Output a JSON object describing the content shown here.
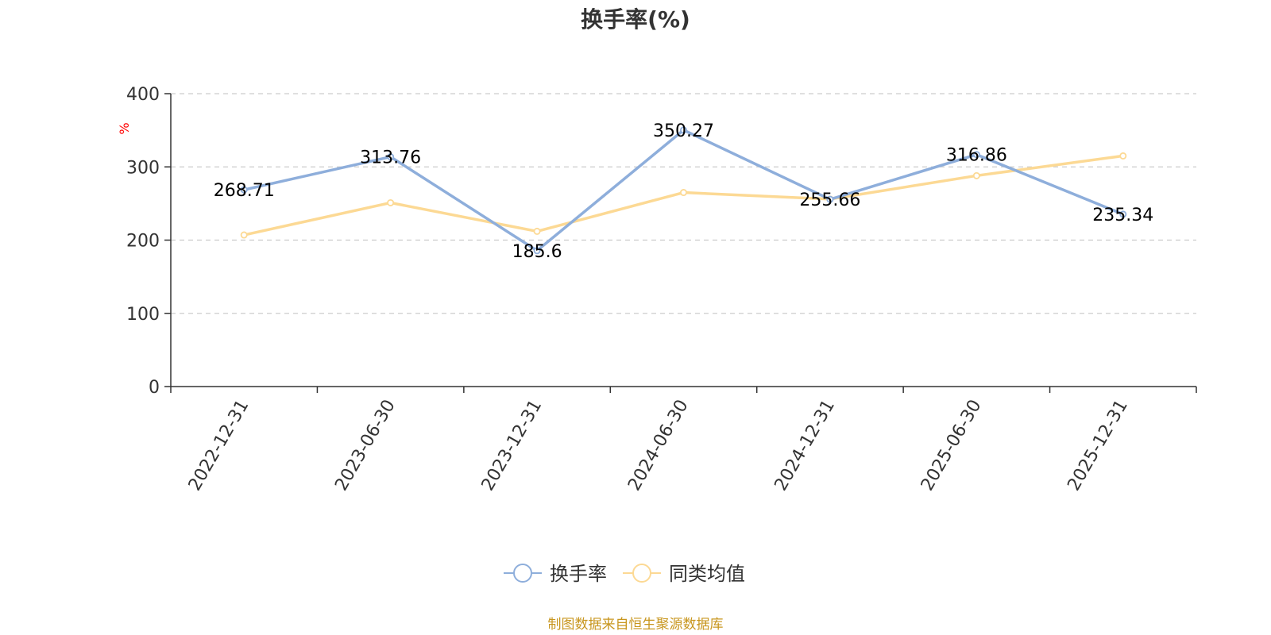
{
  "chart_data": {
    "type": "line",
    "title": "换手率(%)",
    "ylabel": "%",
    "xlabel": "",
    "ylim": [
      0,
      400
    ],
    "yticks": [
      0,
      100,
      200,
      300,
      400
    ],
    "grid": true,
    "categories": [
      "2022-12-31",
      "2023-06-30",
      "2023-12-31",
      "2024-06-30",
      "2024-12-31",
      "2025-06-30",
      "2025-12-31"
    ],
    "series": [
      {
        "name": "换手率",
        "color": "#8eaedb",
        "values": [
          268.71,
          313.76,
          185.6,
          350.27,
          255.66,
          316.86,
          235.34
        ],
        "labels": [
          "268.71",
          "313.76",
          "185.6",
          "350.27",
          "255.66",
          "316.86",
          "235.34"
        ]
      },
      {
        "name": "同类均值",
        "color": "#fcd994",
        "values": [
          207,
          251,
          212,
          265,
          256,
          288,
          315
        ]
      }
    ],
    "legend_position": "bottom-center",
    "source": "制图数据来自恒生聚源数据库"
  }
}
